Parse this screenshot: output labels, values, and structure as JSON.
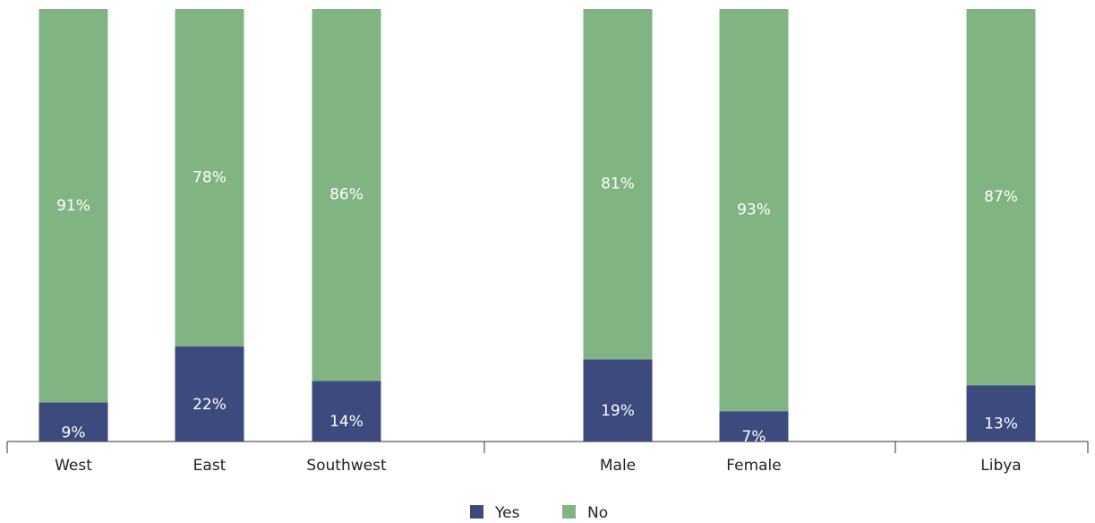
{
  "chart_data": {
    "type": "stacked_bar",
    "categories": [
      "West",
      "East",
      "Southwest",
      "Male",
      "Female",
      "Libya"
    ],
    "series": [
      {
        "name": "Yes",
        "color": "#3c4a7e",
        "values": [
          9,
          22,
          14,
          19,
          7,
          13
        ],
        "value_labels": [
          "9%",
          "22%",
          "14%",
          "19%",
          "7%",
          "13%"
        ]
      },
      {
        "name": "No",
        "color": "#80b483",
        "values": [
          91,
          78,
          86,
          81,
          93,
          87
        ],
        "value_labels": [
          "91%",
          "78%",
          "86%",
          "81%",
          "93%",
          "87%"
        ]
      }
    ],
    "ylim": [
      0,
      100
    ],
    "legend": "bottom"
  }
}
